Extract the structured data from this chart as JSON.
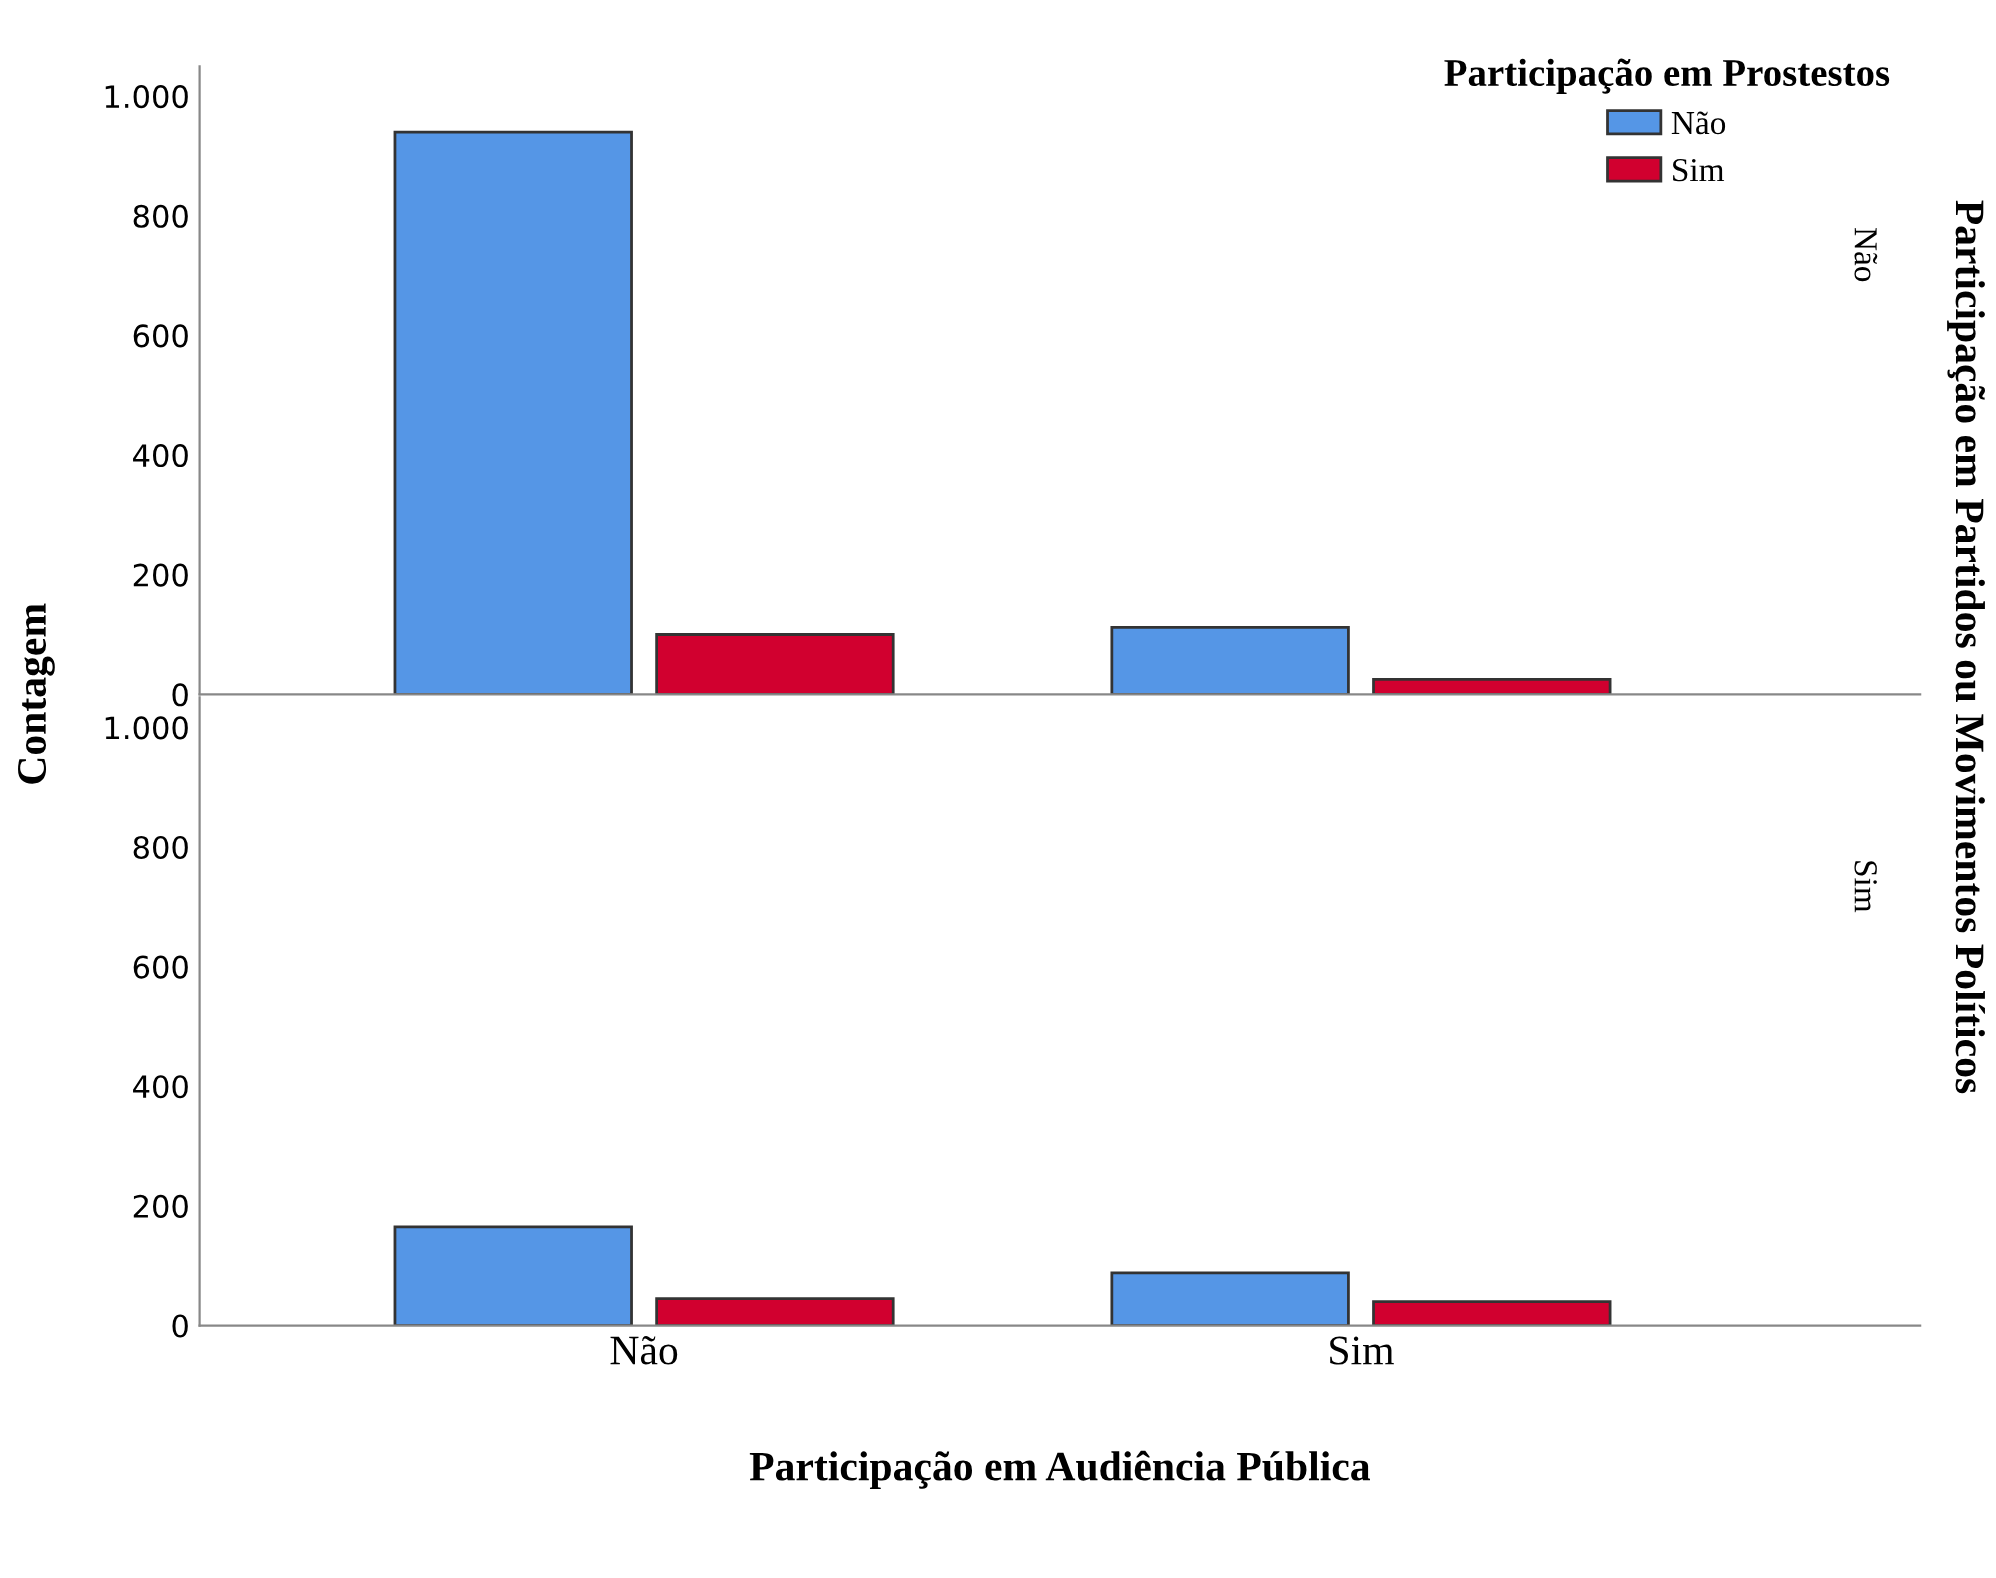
{
  "chart_data": [
    {
      "type": "bar",
      "subtitle": "Não",
      "ylabel": "Contagem",
      "y2label": "Participação em Partidos ou Movimentos Políticos",
      "legend_title": "Participação em Prostestos",
      "legend": "top right",
      "tick_labels": "y",
      "categories": [
        null,
        null
      ],
      "ylim": [
        0,
        1050
      ],
      "yticks": [
        0,
        200,
        400,
        600,
        800,
        {
          "value": 1000,
          "label": "1.000"
        }
      ],
      "series": [
        {
          "name": "Não",
          "color": "#5596e6",
          "values": [
            940,
            112
          ]
        },
        {
          "name": "Sim",
          "color": "#d1002f",
          "values": [
            100,
            25
          ]
        }
      ]
    },
    {
      "type": "bar",
      "subtitle": "Sim",
      "xlabel": "Participação em Audiência Pública",
      "categories": [
        "Não",
        "Sim"
      ],
      "ylim": [
        0,
        1050
      ],
      "yticks": [
        0,
        200,
        400,
        600,
        800,
        {
          "value": 1000,
          "label": "1.000"
        }
      ],
      "series": [
        {
          "color": "#5596e6",
          "values": [
            165,
            88
          ]
        },
        {
          "color": "#d1002f",
          "values": [
            45,
            40
          ]
        }
      ]
    }
  ]
}
